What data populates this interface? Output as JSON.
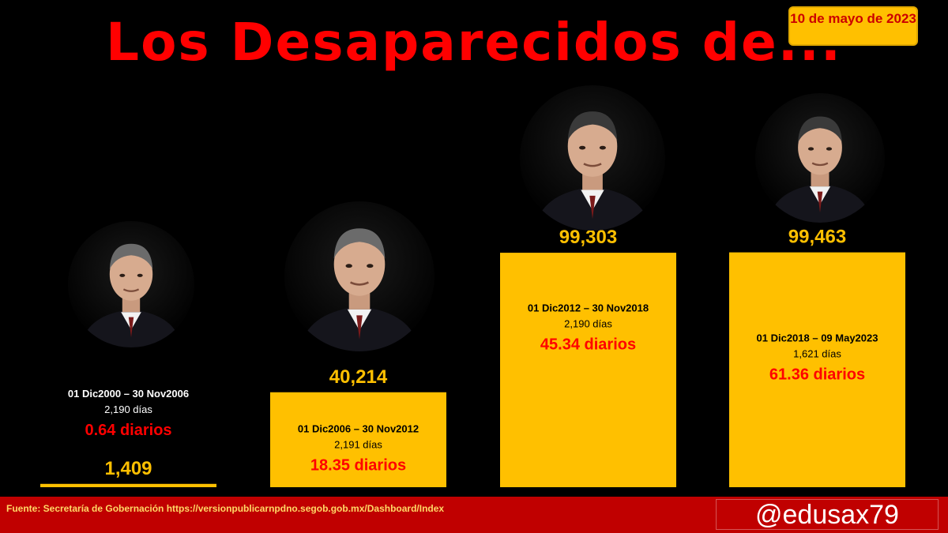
{
  "title": "Los Desaparecidos de...",
  "date_badge": "10 de mayo de 2023",
  "footer": {
    "source": "Fuente: Secretaría de Gobernación https://versionpublicarnpdno.segob.gob.mx/Dashboard/Index",
    "handle": "@edusax79"
  },
  "colors": {
    "bar": "#ffc000",
    "value_text": "#ffc000",
    "rate_text": "#ff0000",
    "title": "#ff0000",
    "footer_bg": "#c00000"
  },
  "chart_data": {
    "type": "bar",
    "categories": [
      "01 Dic2000 – 30 Nov2006",
      "01 Dic2006 – 30 Nov2012",
      "01 Dic2012 – 30 Nov2018",
      "01 Dic2018 – 09 May2023"
    ],
    "values": [
      1409,
      40214,
      99303,
      99463
    ],
    "value_labels": [
      "1,409",
      "40,214",
      "99,303",
      "99,463"
    ],
    "days_labels": [
      "2,190 días",
      "2,191 días",
      "2,190 días",
      "1,621 días"
    ],
    "rate_labels": [
      "0.64 diarios",
      "18.35 diarios",
      "45.34 diarios",
      "61.36 diarios"
    ],
    "portrait_icons": [
      "portrait-icon",
      "portrait-icon",
      "portrait-icon",
      "portrait-icon"
    ],
    "ylim": [
      0,
      100000
    ],
    "grid": false,
    "legend": "none"
  }
}
